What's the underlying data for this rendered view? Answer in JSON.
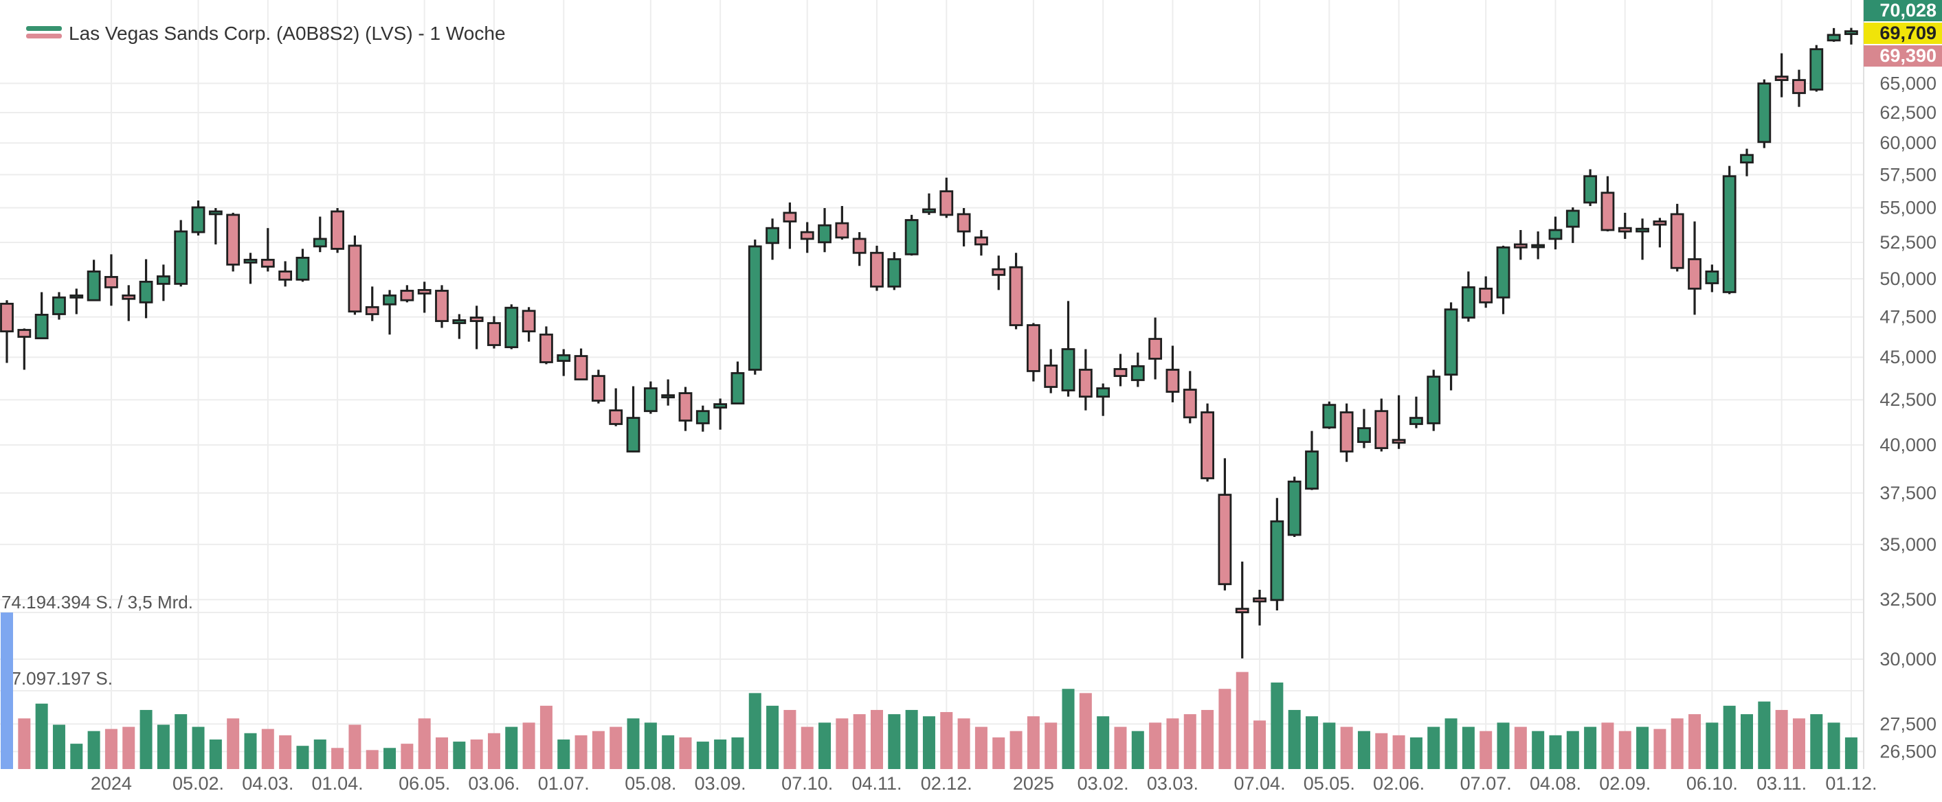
{
  "legend": {
    "title": "Las Vegas Sands Corp. (A0B8S2) (LVS) - 1 Woche",
    "icon": "candlestick-legend-icon"
  },
  "colors": {
    "up": "#37936F",
    "down": "#DD8B95",
    "wick": "#1f1f1f",
    "body_border": "#1f1f1f",
    "selected_volume": "#7EA7F0",
    "grid": "#ededed",
    "axis_text": "#5f5f5f",
    "badge_high_bg": "#2F8F6E",
    "badge_high_text": "#ffffff",
    "badge_last_bg": "#F0E409",
    "badge_last_text": "#222222",
    "badge_low_bg": "#D8878F",
    "badge_low_text": "#ffffff"
  },
  "price_axis": {
    "ticks": [
      65000,
      62500,
      60000,
      57500,
      55000,
      52500,
      50000,
      47500,
      45000,
      42500,
      40000,
      37500,
      35000,
      32500,
      30000,
      27500,
      26500
    ],
    "badges": [
      {
        "value": "70,028",
        "type": "high"
      },
      {
        "value": "69,709",
        "type": "last"
      },
      {
        "value": "69,390",
        "type": "low"
      }
    ]
  },
  "volume_axis": {
    "max_label": "74.194.394 S. / 3,5 Mrd.",
    "mid_label": "37.097.197 S.",
    "max_shares": 74194394
  },
  "time_axis": {
    "ticks": [
      {
        "label": "2024",
        "index": 6
      },
      {
        "label": "05.02.",
        "index": 11
      },
      {
        "label": "04.03.",
        "index": 15
      },
      {
        "label": "01.04.",
        "index": 19
      },
      {
        "label": "06.05.",
        "index": 24
      },
      {
        "label": "03.06.",
        "index": 28
      },
      {
        "label": "01.07.",
        "index": 32
      },
      {
        "label": "05.08.",
        "index": 37
      },
      {
        "label": "03.09.",
        "index": 41
      },
      {
        "label": "07.10.",
        "index": 46
      },
      {
        "label": "04.11.",
        "index": 50
      },
      {
        "label": "02.12.",
        "index": 54
      },
      {
        "label": "2025",
        "index": 59
      },
      {
        "label": "03.02.",
        "index": 63
      },
      {
        "label": "03.03.",
        "index": 67
      },
      {
        "label": "07.04.",
        "index": 72
      },
      {
        "label": "05.05.",
        "index": 76
      },
      {
        "label": "02.06.",
        "index": 80
      },
      {
        "label": "07.07.",
        "index": 85
      },
      {
        "label": "04.08.",
        "index": 89
      },
      {
        "label": "02.09.",
        "index": 93
      },
      {
        "label": "06.10.",
        "index": 98
      },
      {
        "label": "03.11.",
        "index": 102
      },
      {
        "label": "01.12.",
        "index": 106
      }
    ]
  },
  "chart_data": {
    "type": "candlestick+volume",
    "title": "Las Vegas Sands Corp. (A0B8S2) (LVS) - 1 Woche",
    "interval": "1 Woche",
    "scale": "logarithmic",
    "price_ticks": [
      65000,
      62500,
      60000,
      57500,
      55000,
      52500,
      50000,
      47500,
      45000,
      42500,
      40000,
      37500,
      35000,
      32500,
      30000,
      27500,
      26500
    ],
    "last_price": 69709,
    "period_high_marker": 70028,
    "period_low_marker": 69390,
    "volume_max_shares": 74194394,
    "highlight_index": 0,
    "columns": [
      "week_start",
      "open",
      "high",
      "low",
      "close",
      "volume_mio_shares"
    ],
    "candles": [
      [
        "2023-11-20",
        48350,
        48580,
        44660,
        46590,
        74.19
      ],
      [
        "2023-11-27",
        46680,
        46770,
        44250,
        46250,
        24
      ],
      [
        "2023-12-04",
        46160,
        49110,
        46120,
        47640,
        31
      ],
      [
        "2023-12-11",
        47680,
        49110,
        47330,
        48760,
        21
      ],
      [
        "2023-12-18",
        48760,
        49340,
        47680,
        48890,
        12
      ],
      [
        "2023-12-25",
        48580,
        51290,
        48530,
        50490,
        18
      ],
      [
        "2024-01-01",
        50120,
        51670,
        48220,
        49430,
        19
      ],
      [
        "2024-01-08",
        48890,
        49570,
        47240,
        48670,
        20
      ],
      [
        "2024-01-15",
        48440,
        51330,
        47420,
        49800,
        28
      ],
      [
        "2024-01-22",
        49660,
        50960,
        48530,
        50160,
        21
      ],
      [
        "2024-01-29",
        49660,
        54100,
        49480,
        53280,
        26
      ],
      [
        "2024-02-05",
        53230,
        55540,
        52990,
        55030,
        20
      ],
      [
        "2024-02-12",
        54530,
        54980,
        52360,
        54730,
        14
      ],
      [
        "2024-02-19",
        54480,
        54630,
        50490,
        50960,
        24
      ],
      [
        "2024-02-26",
        51100,
        51770,
        49660,
        51290,
        17
      ],
      [
        "2024-03-04",
        51290,
        53520,
        50490,
        50820,
        19
      ],
      [
        "2024-03-11",
        50490,
        51190,
        49480,
        49940,
        16
      ],
      [
        "2024-03-18",
        49940,
        52050,
        49800,
        51430,
        11
      ],
      [
        "2024-03-25",
        52220,
        54350,
        51820,
        52750,
        14
      ],
      [
        "2024-04-01",
        54730,
        54980,
        51770,
        52050,
        10
      ],
      [
        "2024-04-08",
        52270,
        52990,
        47640,
        47850,
        21
      ],
      [
        "2024-04-15",
        48130,
        49480,
        47240,
        47680,
        9
      ],
      [
        "2024-04-22",
        48310,
        49250,
        46390,
        48890,
        10
      ],
      [
        "2024-04-29",
        49200,
        49570,
        48440,
        48580,
        12
      ],
      [
        "2024-05-06",
        49250,
        49800,
        47770,
        49020,
        24
      ],
      [
        "2024-05-13",
        49200,
        49570,
        46810,
        47240,
        15
      ],
      [
        "2024-05-20",
        47110,
        47680,
        46120,
        47290,
        13
      ],
      [
        "2024-05-27",
        47460,
        48220,
        45490,
        47240,
        14
      ],
      [
        "2024-06-03",
        47110,
        47550,
        45530,
        45740,
        17
      ],
      [
        "2024-06-10",
        45610,
        48310,
        45490,
        48090,
        20
      ],
      [
        "2024-06-17",
        47890,
        48130,
        45950,
        46590,
        22
      ],
      [
        "2024-06-24",
        46390,
        46900,
        44580,
        44700,
        30
      ],
      [
        "2024-07-01",
        44780,
        45490,
        43880,
        45120,
        14
      ],
      [
        "2024-07-08",
        45070,
        45530,
        43640,
        43680,
        16
      ],
      [
        "2024-07-15",
        43880,
        44250,
        42290,
        42450,
        18
      ],
      [
        "2024-07-22",
        41900,
        43160,
        41020,
        41140,
        20
      ],
      [
        "2024-07-29",
        39650,
        43280,
        39610,
        41480,
        24
      ],
      [
        "2024-08-05",
        41860,
        43560,
        41710,
        43160,
        22
      ],
      [
        "2024-08-12",
        42640,
        43680,
        42170,
        42760,
        16
      ],
      [
        "2024-08-19",
        42880,
        43240,
        40760,
        41330,
        15
      ],
      [
        "2024-08-26",
        41180,
        42170,
        40720,
        41860,
        13
      ],
      [
        "2024-09-02",
        42060,
        42570,
        40830,
        42250,
        14
      ],
      [
        "2024-09-09",
        42290,
        44740,
        42250,
        44050,
        15
      ],
      [
        "2024-09-16",
        44250,
        52700,
        43960,
        52220,
        36
      ],
      [
        "2024-09-23",
        52460,
        54210,
        51290,
        53520,
        30
      ],
      [
        "2024-09-30",
        54630,
        55390,
        52050,
        54000,
        28
      ],
      [
        "2024-10-07",
        53230,
        53950,
        51770,
        52750,
        20
      ],
      [
        "2024-10-14",
        52510,
        54980,
        51820,
        53720,
        22
      ],
      [
        "2024-10-21",
        53870,
        55130,
        52700,
        52850,
        24
      ],
      [
        "2024-10-28",
        52750,
        53230,
        50870,
        51770,
        26
      ],
      [
        "2024-11-04",
        51770,
        52270,
        49200,
        49480,
        28
      ],
      [
        "2024-11-11",
        49480,
        51820,
        49250,
        51330,
        26
      ],
      [
        "2024-11-18",
        51670,
        54480,
        51580,
        54100,
        28
      ],
      [
        "2024-11-25",
        54680,
        56070,
        54480,
        54880,
        25
      ],
      [
        "2024-12-02",
        56230,
        57270,
        54260,
        54480,
        27
      ],
      [
        "2024-12-09",
        54530,
        54980,
        52220,
        53280,
        24
      ],
      [
        "2024-12-16",
        52850,
        53380,
        51580,
        52360,
        20
      ],
      [
        "2024-12-23",
        50640,
        51580,
        49250,
        50260,
        15
      ],
      [
        "2024-12-30",
        50780,
        51770,
        46720,
        46980,
        18
      ],
      [
        "2025-01-06",
        46980,
        47110,
        43560,
        44170,
        25
      ],
      [
        "2025-01-13",
        44500,
        45490,
        42880,
        43240,
        22
      ],
      [
        "2025-01-20",
        43040,
        48530,
        42680,
        45490,
        38
      ],
      [
        "2025-01-27",
        44250,
        45490,
        41900,
        42680,
        36
      ],
      [
        "2025-02-03",
        42680,
        43440,
        41590,
        43160,
        25
      ],
      [
        "2025-02-10",
        44290,
        45200,
        43280,
        43880,
        20
      ],
      [
        "2025-02-17",
        43640,
        45280,
        43240,
        44460,
        18
      ],
      [
        "2025-02-24",
        46120,
        47460,
        43680,
        44910,
        22
      ],
      [
        "2025-03-03",
        44250,
        45700,
        42360,
        42960,
        24
      ],
      [
        "2025-03-10",
        43080,
        44170,
        41180,
        41510,
        26
      ],
      [
        "2025-03-17",
        41790,
        42290,
        38080,
        38250,
        28
      ],
      [
        "2025-03-24",
        37410,
        39290,
        32900,
        33180,
        38
      ],
      [
        "2025-03-31",
        32100,
        34200,
        30030,
        31950,
        46
      ],
      [
        "2025-04-07",
        32550,
        32930,
        31390,
        32420,
        23
      ],
      [
        "2025-04-14",
        32480,
        37250,
        32030,
        36100,
        41
      ],
      [
        "2025-04-21",
        35450,
        38330,
        35350,
        38080,
        28
      ],
      [
        "2025-04-28",
        37720,
        40760,
        37650,
        39650,
        25
      ],
      [
        "2025-05-05",
        40950,
        42400,
        40870,
        42210,
        22
      ],
      [
        "2025-05-12",
        41790,
        42290,
        39100,
        39650,
        20
      ],
      [
        "2025-05-19",
        40160,
        41980,
        39830,
        40910,
        18
      ],
      [
        "2025-05-26",
        41860,
        42570,
        39650,
        39830,
        17
      ],
      [
        "2025-06-02",
        40270,
        42760,
        39790,
        40120,
        16
      ],
      [
        "2025-06-09",
        41140,
        42680,
        40910,
        41480,
        15
      ],
      [
        "2025-06-16",
        41180,
        44250,
        40760,
        43840,
        20
      ],
      [
        "2025-06-23",
        43960,
        48440,
        43040,
        47980,
        24
      ],
      [
        "2025-06-30",
        47460,
        50490,
        47200,
        49430,
        20
      ],
      [
        "2025-07-07",
        49340,
        50160,
        48090,
        48440,
        18
      ],
      [
        "2025-07-14",
        48760,
        52270,
        47680,
        52150,
        22
      ],
      [
        "2025-07-21",
        52360,
        53380,
        51290,
        52150,
        20
      ],
      [
        "2025-07-28",
        52220,
        53280,
        51330,
        52310,
        18
      ],
      [
        "2025-08-04",
        52750,
        54350,
        52010,
        53380,
        16
      ],
      [
        "2025-08-11",
        53620,
        55030,
        52460,
        54780,
        18
      ],
      [
        "2025-08-18",
        55390,
        57920,
        55130,
        57380,
        20
      ],
      [
        "2025-08-25",
        56120,
        57380,
        53280,
        53380,
        22
      ],
      [
        "2025-09-01",
        53520,
        54630,
        52750,
        53280,
        18
      ],
      [
        "2025-09-08",
        53280,
        54210,
        51290,
        53470,
        20
      ],
      [
        "2025-09-15",
        54000,
        54260,
        52150,
        53770,
        19
      ],
      [
        "2025-09-22",
        54530,
        55290,
        50490,
        50730,
        24
      ],
      [
        "2025-09-29",
        51330,
        54000,
        47640,
        49340,
        26
      ],
      [
        "2025-10-06",
        49700,
        50960,
        49110,
        50490,
        22
      ],
      [
        "2025-10-13",
        49110,
        58180,
        48980,
        57380,
        30
      ],
      [
        "2025-10-20",
        58450,
        59540,
        57380,
        59040,
        26
      ],
      [
        "2025-10-27",
        60080,
        65350,
        59590,
        64990,
        32
      ],
      [
        "2025-11-03",
        65590,
        67680,
        63800,
        65290,
        28
      ],
      [
        "2025-11-10",
        65290,
        66200,
        62980,
        64160,
        24
      ],
      [
        "2025-11-17",
        64460,
        68430,
        64280,
        68050,
        26
      ],
      [
        "2025-11-24",
        68860,
        70010,
        68730,
        69370,
        22
      ],
      [
        "2025-12-01",
        69450,
        70028,
        68480,
        69709,
        15
      ]
    ]
  }
}
